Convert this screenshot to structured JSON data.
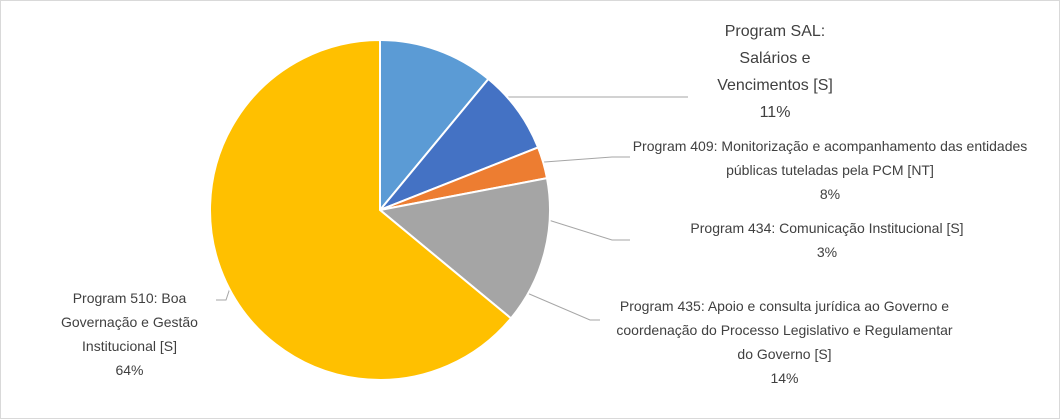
{
  "chart_data": {
    "type": "pie",
    "categories": [
      "Program SAL: Salários e Vencimentos [S]",
      "Program 409: Monitorização e acompanhamento das entidades públicas tuteladas pela PCM [NT]",
      "Program 434: Comunicação Institucional [S]",
      "Program 435: Apoio e consulta jurídica ao Governo e coordenação do Processo Legislativo e Regulamentar do Governo [S]",
      "Program 510: Boa Governação e Gestão Institucional [S]"
    ],
    "values": [
      11,
      8,
      3,
      14,
      64
    ],
    "value_labels": [
      "11%",
      "8%",
      "3%",
      "14%",
      "64%"
    ],
    "colors": [
      "#5b9bd5",
      "#4472c4",
      "#ed7d31",
      "#a5a5a5",
      "#ffc000"
    ]
  }
}
